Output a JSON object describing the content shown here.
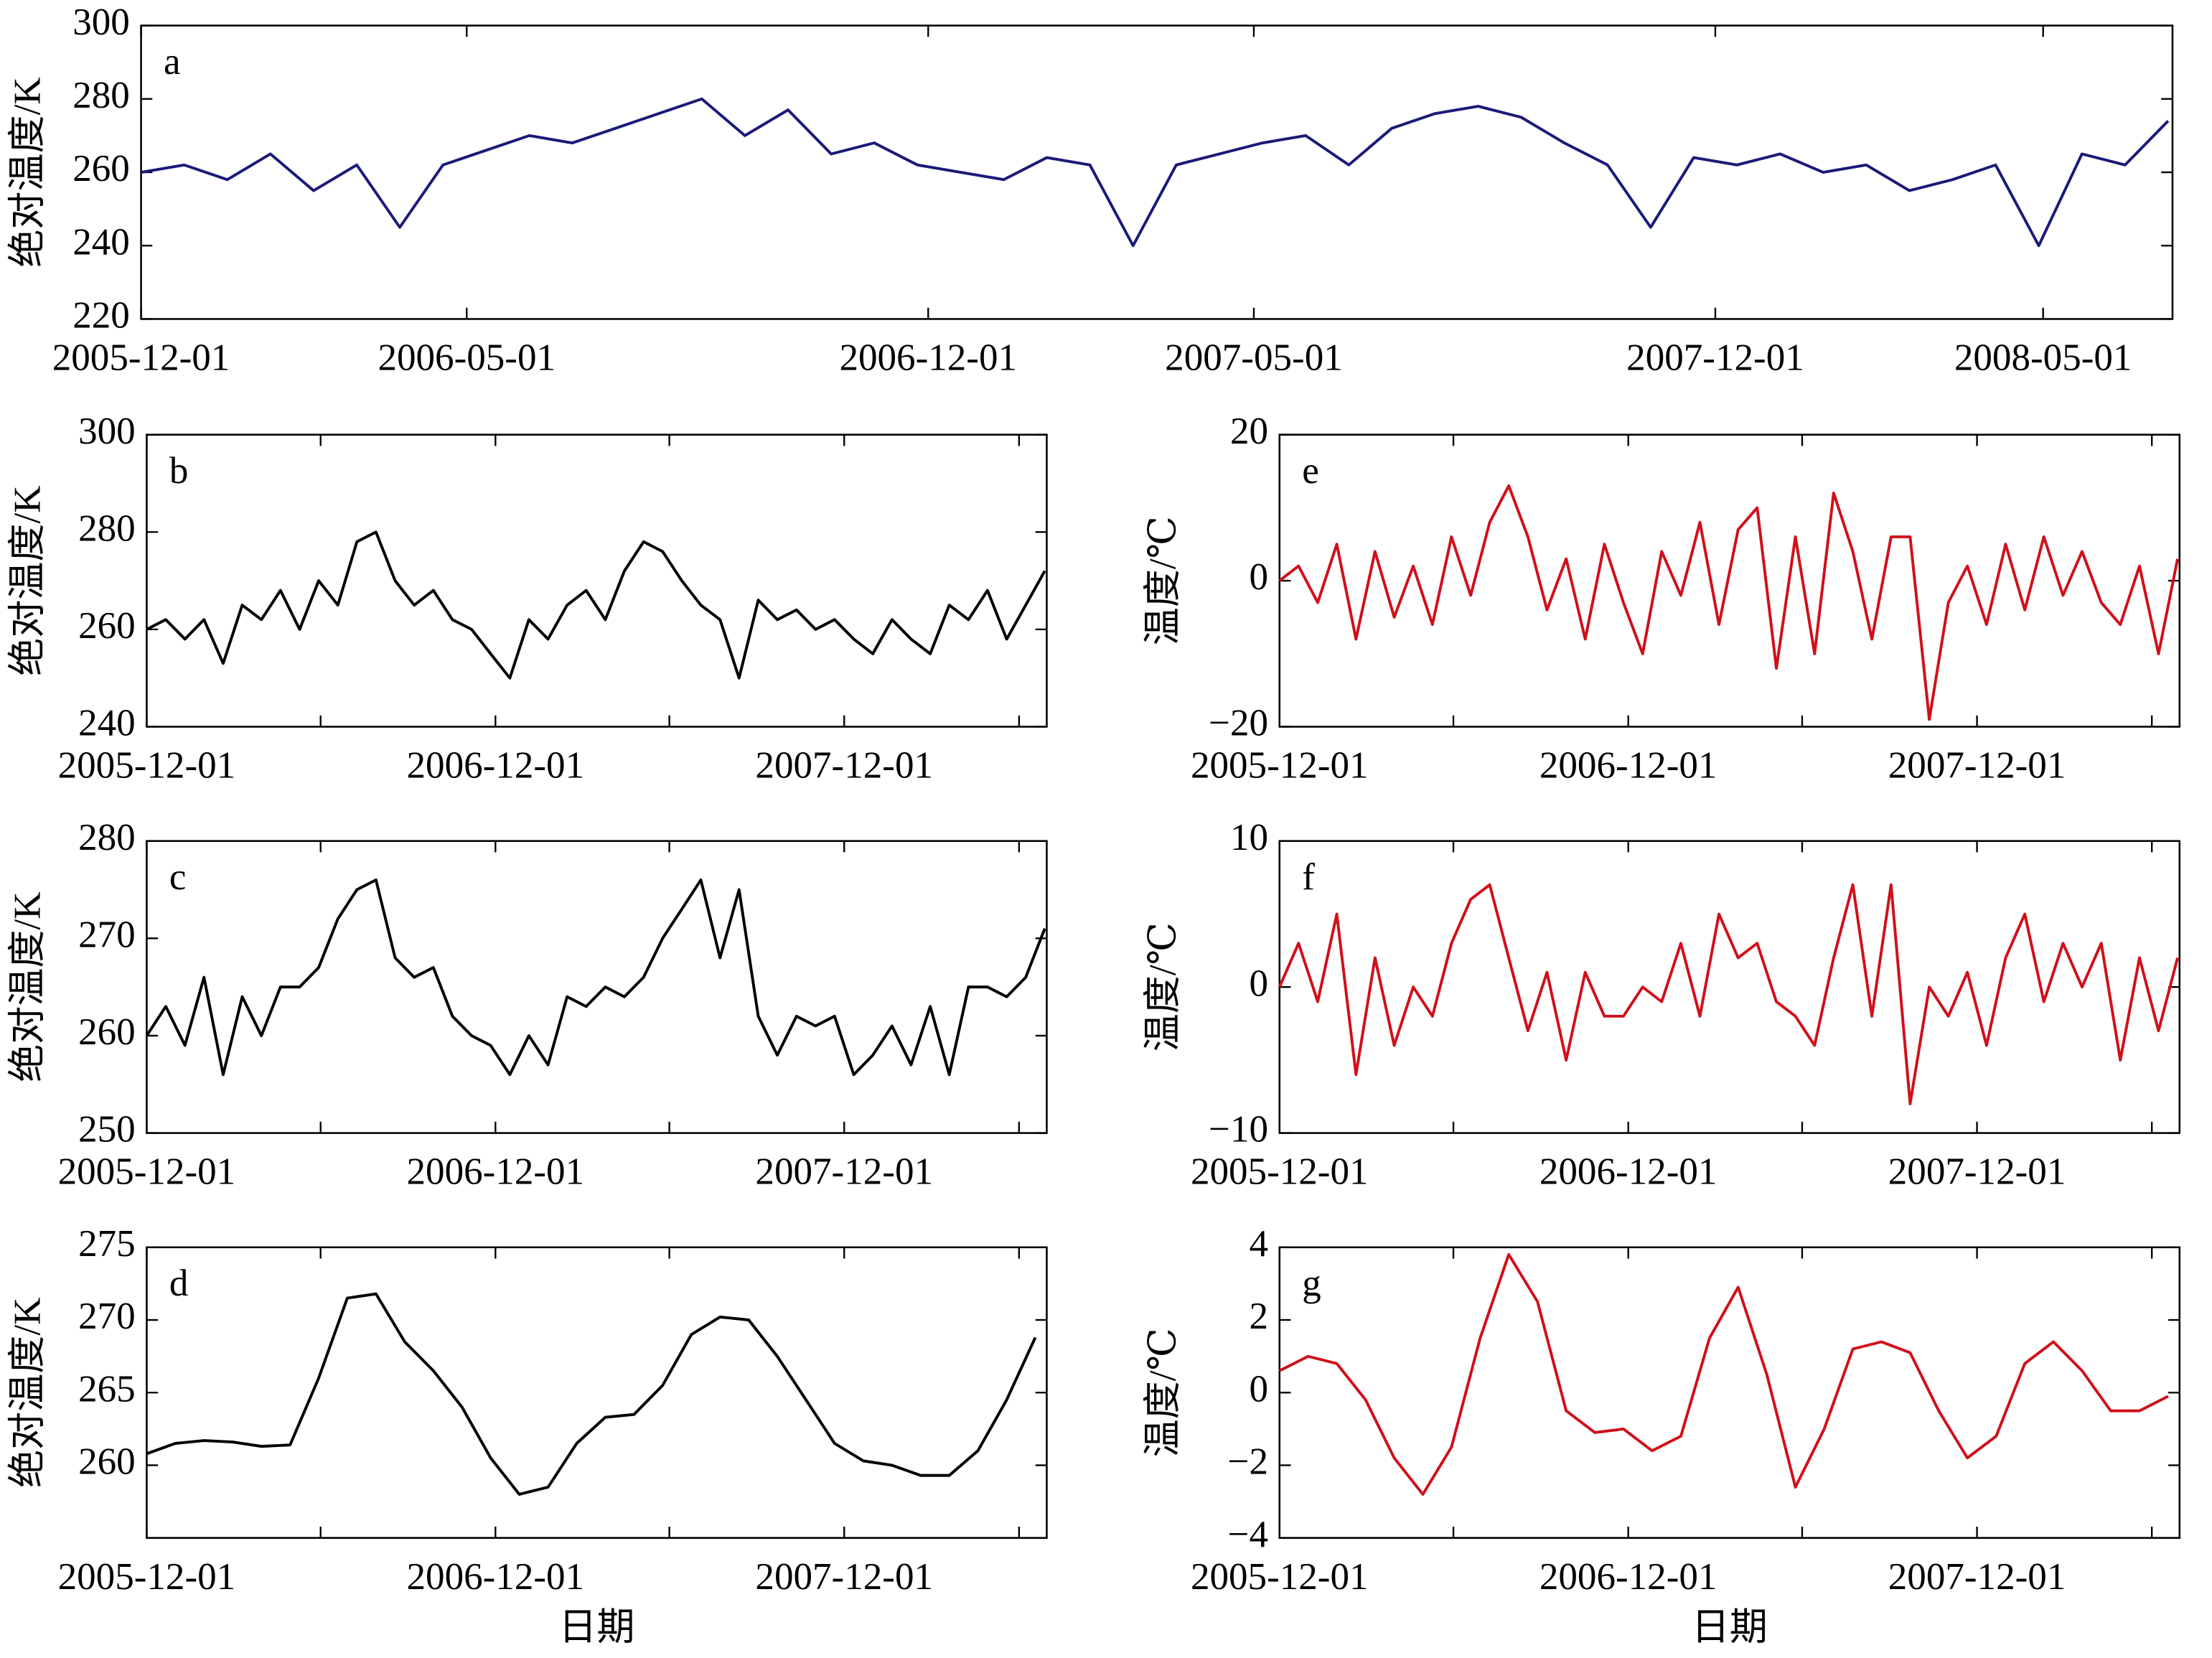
{
  "chart_data": [
    {
      "type": "line",
      "label": "a",
      "ylabel": "绝对温度/K",
      "color": "#1a1a78",
      "x": [
        "2005-12-01",
        "2005-12-21",
        "2006-01-10",
        "2006-01-30",
        "2006-02-19",
        "2006-03-11",
        "2006-03-31",
        "2006-04-20",
        "2006-05-10",
        "2006-05-30",
        "2006-06-19",
        "2006-07-09",
        "2006-07-29",
        "2006-08-18",
        "2006-09-07",
        "2006-09-27",
        "2006-10-17",
        "2006-11-06",
        "2006-11-26",
        "2006-12-16",
        "2007-01-05",
        "2007-01-25",
        "2007-02-14",
        "2007-03-06",
        "2007-03-26",
        "2007-04-15",
        "2007-05-05",
        "2007-05-25",
        "2007-06-14",
        "2007-07-04",
        "2007-07-24",
        "2007-08-13",
        "2007-09-02",
        "2007-09-22",
        "2007-10-12",
        "2007-11-01",
        "2007-11-21",
        "2007-12-11",
        "2007-12-31",
        "2008-01-20",
        "2008-02-09",
        "2008-02-29",
        "2008-03-20",
        "2008-04-09",
        "2008-04-29",
        "2008-05-19",
        "2008-06-08",
        "2008-06-28"
      ],
      "values": [
        260,
        262,
        258,
        265,
        255,
        262,
        245,
        262,
        266,
        270,
        268,
        272,
        276,
        280,
        270,
        277,
        265,
        268,
        262,
        260,
        258,
        264,
        262,
        240,
        262,
        265,
        268,
        270,
        262,
        272,
        276,
        278,
        275,
        268,
        262,
        245,
        264,
        262,
        265,
        260,
        262,
        255,
        258,
        262,
        240,
        265,
        262,
        274
      ],
      "xlim": [
        "2005-12-01",
        "2008-06-30"
      ],
      "xticks": [
        "2005-12-01",
        "2006-05-01",
        "2006-12-01",
        "2007-05-01",
        "2007-12-01",
        "2008-05-01"
      ],
      "ylim": [
        220,
        300
      ],
      "yticks": [
        220,
        240,
        260,
        280,
        300
      ]
    },
    {
      "type": "line",
      "label": "b",
      "ylabel": "绝对温度/K",
      "color": "#000000",
      "x": [
        "2005-12-01",
        "2005-12-21",
        "2006-01-10",
        "2006-01-30",
        "2006-02-19",
        "2006-03-11",
        "2006-03-31",
        "2006-04-20",
        "2006-05-10",
        "2006-05-30",
        "2006-06-19",
        "2006-07-09",
        "2006-07-29",
        "2006-08-18",
        "2006-09-07",
        "2006-09-27",
        "2006-10-17",
        "2006-11-06",
        "2006-11-26",
        "2006-12-16",
        "2007-01-05",
        "2007-01-25",
        "2007-02-14",
        "2007-03-06",
        "2007-03-26",
        "2007-04-15",
        "2007-05-05",
        "2007-05-25",
        "2007-06-14",
        "2007-07-04",
        "2007-07-24",
        "2007-08-13",
        "2007-09-02",
        "2007-09-22",
        "2007-10-12",
        "2007-11-01",
        "2007-11-21",
        "2007-12-11",
        "2007-12-31",
        "2008-01-20",
        "2008-02-09",
        "2008-02-29",
        "2008-03-20",
        "2008-04-09",
        "2008-04-29",
        "2008-05-19",
        "2008-06-08",
        "2008-06-28"
      ],
      "values": [
        260,
        262,
        258,
        262,
        253,
        265,
        262,
        268,
        260,
        270,
        265,
        278,
        280,
        270,
        265,
        268,
        262,
        260,
        255,
        250,
        262,
        258,
        265,
        268,
        262,
        272,
        278,
        276,
        270,
        265,
        262,
        250,
        266,
        262,
        264,
        260,
        262,
        258,
        255,
        262,
        258,
        255,
        265,
        262,
        268,
        258,
        265,
        272
      ],
      "xlim": [
        "2005-12-01",
        "2008-06-30"
      ],
      "xticks": [
        "2005-12-01",
        {
          "value": "2006-06-01",
          "label": null
        },
        "2006-12-01",
        {
          "value": "2007-06-01",
          "label": null
        },
        "2007-12-01",
        {
          "value": "2008-06-01",
          "label": null
        }
      ],
      "ylim": [
        240,
        300
      ],
      "yticks": [
        240,
        260,
        280,
        300
      ]
    },
    {
      "type": "line",
      "label": "c",
      "ylabel": "绝对温度/K",
      "color": "#000000",
      "x": [
        "2005-12-01",
        "2005-12-21",
        "2006-01-10",
        "2006-01-30",
        "2006-02-19",
        "2006-03-11",
        "2006-03-31",
        "2006-04-20",
        "2006-05-10",
        "2006-05-30",
        "2006-06-19",
        "2006-07-09",
        "2006-07-29",
        "2006-08-18",
        "2006-09-07",
        "2006-09-27",
        "2006-10-17",
        "2006-11-06",
        "2006-11-26",
        "2006-12-16",
        "2007-01-05",
        "2007-01-25",
        "2007-02-14",
        "2007-03-06",
        "2007-03-26",
        "2007-04-15",
        "2007-05-05",
        "2007-05-25",
        "2007-06-14",
        "2007-07-04",
        "2007-07-24",
        "2007-08-13",
        "2007-09-02",
        "2007-09-22",
        "2007-10-12",
        "2007-11-01",
        "2007-11-21",
        "2007-12-11",
        "2007-12-31",
        "2008-01-20",
        "2008-02-09",
        "2008-02-29",
        "2008-03-20",
        "2008-04-09",
        "2008-04-29",
        "2008-05-19",
        "2008-06-08",
        "2008-06-28"
      ],
      "values": [
        260,
        263,
        259,
        266,
        256,
        264,
        260,
        265,
        265,
        267,
        272,
        275,
        276,
        268,
        266,
        267,
        262,
        260,
        259,
        256,
        260,
        257,
        264,
        263,
        265,
        264,
        266,
        270,
        273,
        276,
        268,
        275,
        262,
        258,
        262,
        261,
        262,
        256,
        258,
        261,
        257,
        263,
        256,
        265,
        265,
        264,
        266,
        271
      ],
      "xlim": [
        "2005-12-01",
        "2008-06-30"
      ],
      "xticks": [
        "2005-12-01",
        {
          "value": "2006-06-01",
          "label": null
        },
        "2006-12-01",
        {
          "value": "2007-06-01",
          "label": null
        },
        "2007-12-01",
        {
          "value": "2008-06-01",
          "label": null
        }
      ],
      "ylim": [
        250,
        280
      ],
      "yticks": [
        250,
        260,
        270,
        280
      ]
    },
    {
      "type": "line",
      "label": "d",
      "ylabel": "绝对温度/K",
      "xlabel": "日期",
      "color": "#000000",
      "x": [
        "2005-12-01",
        "2005-12-31",
        "2006-01-30",
        "2006-03-01",
        "2006-03-31",
        "2006-04-30",
        "2006-05-30",
        "2006-06-29",
        "2006-07-29",
        "2006-08-28",
        "2006-09-27",
        "2006-10-27",
        "2006-11-26",
        "2006-12-26",
        "2007-01-25",
        "2007-02-24",
        "2007-03-26",
        "2007-04-25",
        "2007-05-25",
        "2007-06-24",
        "2007-07-24",
        "2007-08-23",
        "2007-09-22",
        "2007-10-22",
        "2007-11-21",
        "2007-12-21",
        "2008-01-20",
        "2008-02-19",
        "2008-03-20",
        "2008-04-19",
        "2008-05-19",
        "2008-06-18"
      ],
      "values": [
        260.8,
        261.5,
        261.7,
        261.6,
        261.3,
        261.4,
        266,
        271.5,
        271.8,
        268.5,
        266.5,
        264,
        260.5,
        258,
        258.5,
        261.5,
        263.3,
        263.5,
        265.5,
        269,
        270.2,
        270,
        267.5,
        264.5,
        261.5,
        260.3,
        260,
        259.3,
        259.3,
        261,
        264.5,
        268.8
      ],
      "xlim": [
        "2005-12-01",
        "2008-06-30"
      ],
      "xticks": [
        "2005-12-01",
        {
          "value": "2006-06-01",
          "label": null
        },
        "2006-12-01",
        {
          "value": "2007-06-01",
          "label": null
        },
        "2007-12-01",
        {
          "value": "2008-06-01",
          "label": null
        }
      ],
      "ylim": [
        255,
        275
      ],
      "yticks": [
        260,
        265,
        270,
        275
      ]
    },
    {
      "type": "line",
      "label": "e",
      "ylabel": "温度/℃",
      "color": "#d0101a",
      "x": [
        "2005-12-01",
        "2005-12-21",
        "2006-01-10",
        "2006-01-30",
        "2006-02-19",
        "2006-03-11",
        "2006-03-31",
        "2006-04-20",
        "2006-05-10",
        "2006-05-30",
        "2006-06-19",
        "2006-07-09",
        "2006-07-29",
        "2006-08-18",
        "2006-09-07",
        "2006-09-27",
        "2006-10-17",
        "2006-11-06",
        "2006-11-26",
        "2006-12-16",
        "2007-01-05",
        "2007-01-25",
        "2007-02-14",
        "2007-03-06",
        "2007-03-26",
        "2007-04-15",
        "2007-05-05",
        "2007-05-25",
        "2007-06-14",
        "2007-07-04",
        "2007-07-24",
        "2007-08-13",
        "2007-09-02",
        "2007-09-22",
        "2007-10-12",
        "2007-11-01",
        "2007-11-21",
        "2007-12-11",
        "2007-12-31",
        "2008-01-20",
        "2008-02-09",
        "2008-02-29",
        "2008-03-20",
        "2008-04-09",
        "2008-04-29",
        "2008-05-19",
        "2008-06-08",
        "2008-06-28"
      ],
      "values": [
        0,
        2,
        -3,
        5,
        -8,
        4,
        -5,
        2,
        -6,
        6,
        -2,
        8,
        13,
        6,
        -4,
        3,
        -8,
        5,
        -3,
        -10,
        4,
        -2,
        8,
        -6,
        7,
        10,
        -12,
        6,
        -10,
        12,
        4,
        -8,
        6,
        6,
        -19,
        -3,
        2,
        -6,
        5,
        -4,
        6,
        -2,
        4,
        -3,
        -6,
        2,
        -10,
        3
      ],
      "xlim": [
        "2005-12-01",
        "2008-06-30"
      ],
      "xticks": [
        "2005-12-01",
        {
          "value": "2006-06-01",
          "label": null
        },
        "2006-12-01",
        {
          "value": "2007-06-01",
          "label": null
        },
        "2007-12-01",
        {
          "value": "2008-06-01",
          "label": null
        }
      ],
      "ylim": [
        -20,
        20
      ],
      "yticks": [
        {
          "value": -20,
          "label": "−20"
        },
        0,
        20
      ]
    },
    {
      "type": "line",
      "label": "f",
      "ylabel": "温度/℃",
      "color": "#d0101a",
      "x": [
        "2005-12-01",
        "2005-12-21",
        "2006-01-10",
        "2006-01-30",
        "2006-02-19",
        "2006-03-11",
        "2006-03-31",
        "2006-04-20",
        "2006-05-10",
        "2006-05-30",
        "2006-06-19",
        "2006-07-09",
        "2006-07-29",
        "2006-08-18",
        "2006-09-07",
        "2006-09-27",
        "2006-10-17",
        "2006-11-06",
        "2006-11-26",
        "2006-12-16",
        "2007-01-05",
        "2007-01-25",
        "2007-02-14",
        "2007-03-06",
        "2007-03-26",
        "2007-04-15",
        "2007-05-05",
        "2007-05-25",
        "2007-06-14",
        "2007-07-04",
        "2007-07-24",
        "2007-08-13",
        "2007-09-02",
        "2007-09-22",
        "2007-10-12",
        "2007-11-01",
        "2007-11-21",
        "2007-12-11",
        "2007-12-31",
        "2008-01-20",
        "2008-02-09",
        "2008-02-29",
        "2008-03-20",
        "2008-04-09",
        "2008-04-29",
        "2008-05-19",
        "2008-06-08",
        "2008-06-28"
      ],
      "values": [
        0,
        3,
        -1,
        5,
        -6,
        2,
        -4,
        0,
        -2,
        3,
        6,
        7,
        2,
        -3,
        1,
        -5,
        1,
        -2,
        -2,
        0,
        -1,
        3,
        -2,
        5,
        2,
        3,
        -1,
        -2,
        -4,
        2,
        7,
        -2,
        7,
        -8,
        0,
        -2,
        1,
        -4,
        2,
        5,
        -1,
        3,
        0,
        3,
        -5,
        2,
        -3,
        2
      ],
      "xlim": [
        "2005-12-01",
        "2008-06-30"
      ],
      "xticks": [
        "2005-12-01",
        {
          "value": "2006-06-01",
          "label": null
        },
        "2006-12-01",
        {
          "value": "2007-06-01",
          "label": null
        },
        "2007-12-01",
        {
          "value": "2008-06-01",
          "label": null
        }
      ],
      "ylim": [
        -10,
        10
      ],
      "yticks": [
        {
          "value": -10,
          "label": "−10"
        },
        0,
        10
      ]
    },
    {
      "type": "line",
      "label": "g",
      "ylabel": "温度/℃",
      "xlabel": "日期",
      "color": "#d0101a",
      "x": [
        "2005-12-01",
        "2005-12-31",
        "2006-01-30",
        "2006-03-01",
        "2006-03-31",
        "2006-04-30",
        "2006-05-30",
        "2006-06-29",
        "2006-07-29",
        "2006-08-28",
        "2006-09-27",
        "2006-10-27",
        "2006-11-26",
        "2006-12-26",
        "2007-01-25",
        "2007-02-24",
        "2007-03-26",
        "2007-04-25",
        "2007-05-25",
        "2007-06-24",
        "2007-07-24",
        "2007-08-23",
        "2007-09-22",
        "2007-10-22",
        "2007-11-21",
        "2007-12-21",
        "2008-01-20",
        "2008-02-19",
        "2008-03-20",
        "2008-04-19",
        "2008-05-19",
        "2008-06-18"
      ],
      "values": [
        0.6,
        1.0,
        0.8,
        -0.2,
        -1.8,
        -2.8,
        -1.5,
        1.5,
        3.8,
        2.5,
        -0.5,
        -1.1,
        -1.0,
        -1.6,
        -1.2,
        1.5,
        2.9,
        0.5,
        -2.6,
        -1,
        1.2,
        1.4,
        1.1,
        -0.5,
        -1.8,
        -1.2,
        0.8,
        1.4,
        0.6,
        -0.5,
        -0.5,
        -0.1
      ],
      "xlim": [
        "2005-12-01",
        "2008-06-30"
      ],
      "xticks": [
        "2005-12-01",
        {
          "value": "2006-06-01",
          "label": null
        },
        "2006-12-01",
        {
          "value": "2007-06-01",
          "label": null
        },
        "2007-12-01",
        {
          "value": "2008-06-01",
          "label": null
        }
      ],
      "ylim": [
        -4,
        4
      ],
      "yticks": [
        {
          "value": -4,
          "label": "−4"
        },
        {
          "value": -2,
          "label": "−2"
        },
        0,
        2,
        4
      ]
    }
  ]
}
